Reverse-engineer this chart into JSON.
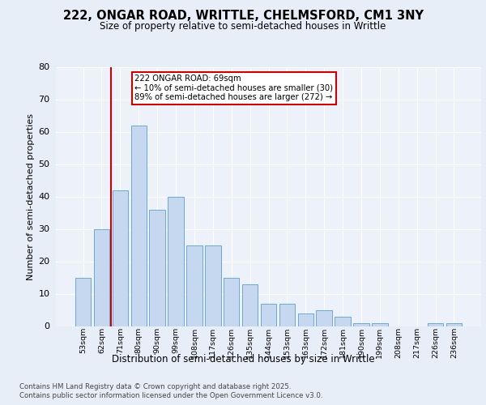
{
  "title1": "222, ONGAR ROAD, WRITTLE, CHELMSFORD, CM1 3NY",
  "title2": "Size of property relative to semi-detached houses in Writtle",
  "xlabel": "Distribution of semi-detached houses by size in Writtle",
  "ylabel": "Number of semi-detached properties",
  "categories": [
    "53sqm",
    "62sqm",
    "71sqm",
    "80sqm",
    "90sqm",
    "99sqm",
    "108sqm",
    "117sqm",
    "126sqm",
    "135sqm",
    "144sqm",
    "153sqm",
    "163sqm",
    "172sqm",
    "181sqm",
    "190sqm",
    "199sqm",
    "208sqm",
    "217sqm",
    "226sqm",
    "236sqm"
  ],
  "values": [
    15,
    30,
    42,
    62,
    36,
    40,
    25,
    25,
    15,
    13,
    7,
    7,
    4,
    5,
    3,
    1,
    1,
    0,
    0,
    1,
    1
  ],
  "bar_color": "#c5d8f0",
  "bar_edge_color": "#5a9fd4",
  "highlight_bar_index": 1,
  "highlight_color": "#cc0000",
  "annotation_text": "222 ONGAR ROAD: 69sqm\n← 10% of semi-detached houses are smaller (30)\n89% of semi-detached houses are larger (272) →",
  "annotation_box_color": "#ffffff",
  "annotation_box_edge": "#cc0000",
  "ylim": [
    0,
    80
  ],
  "yticks": [
    0,
    10,
    20,
    30,
    40,
    50,
    60,
    70,
    80
  ],
  "footer_line1": "Contains HM Land Registry data © Crown copyright and database right 2025.",
  "footer_line2": "Contains public sector information licensed under the Open Government Licence v3.0.",
  "bg_color": "#e8eef8",
  "plot_bg_color": "#edf2fa"
}
